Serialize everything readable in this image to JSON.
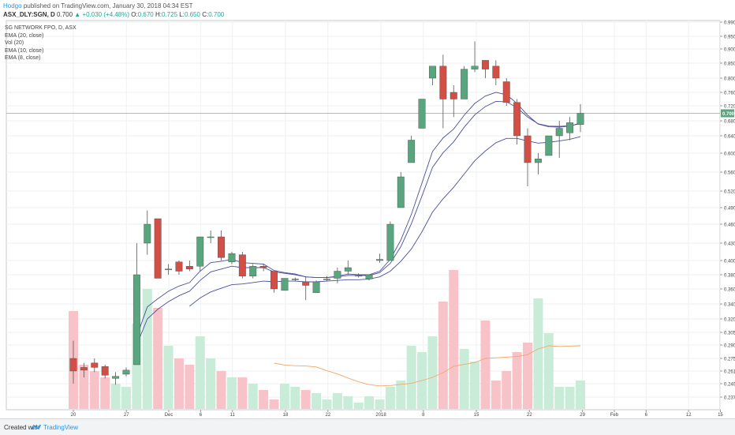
{
  "header": {
    "author": "Hodgo",
    "published": "published on TradingView.com, January 30, 2018 04:34 EST",
    "symbol": "ASX_DLY:SGN, D",
    "last": "0.700",
    "change": "▲ +0.030 (+4.48%)",
    "ohlc": {
      "open": "0.670",
      "high": "0.725",
      "low": "0.650",
      "close": "0.700"
    }
  },
  "legend": [
    "SG NETWORK FPO, D, ASX",
    "EMA (20, close)",
    "Vol (20)",
    "EMA (10, close)",
    "EMA (8, close)"
  ],
  "footer": {
    "created": "Created with",
    "brand": "TradingView",
    "logo": "tradingview-logo-icon"
  },
  "colors": {
    "up": "#58a57e",
    "down": "#d24f45",
    "vol_up": "#c8ecd8",
    "vol_down": "#f7c3c9",
    "ema": "#4c4f9c",
    "vol_ma": "#f0a868",
    "last_line": "#7fb5a0"
  },
  "chart_data": {
    "type": "candlestick",
    "last_price_label": "0.700",
    "y_ticks": [
      "0.990",
      "0.950",
      "0.900",
      "0.850",
      "0.800",
      "0.760",
      "0.720",
      "0.680",
      "0.640",
      "0.600",
      "0.560",
      "0.520",
      "0.490",
      "0.460",
      "0.430",
      "0.400",
      "0.380",
      "0.360",
      "0.340",
      "0.320",
      "0.305",
      "0.290",
      "0.275",
      "0.261",
      "0.249",
      "0.237"
    ],
    "x_ticks": [
      {
        "label": "20",
        "day": 0
      },
      {
        "label": "27",
        "day": 5
      },
      {
        "label": "Dec",
        "day": 9
      },
      {
        "label": "6",
        "day": 12
      },
      {
        "label": "11",
        "day": 15
      },
      {
        "label": "18",
        "day": 20
      },
      {
        "label": "22",
        "day": 24
      },
      {
        "label": "2018",
        "day": 29
      },
      {
        "label": "8",
        "day": 33
      },
      {
        "label": "15",
        "day": 38
      },
      {
        "label": "22",
        "day": 43
      },
      {
        "label": "29",
        "day": 48
      },
      {
        "label": "Feb",
        "day": 51
      },
      {
        "label": "6",
        "day": 54
      },
      {
        "label": "12",
        "day": 58
      },
      {
        "label": "15",
        "day": 61
      }
    ],
    "candles": [
      {
        "o": 0.275,
        "h": 0.295,
        "l": 0.249,
        "c": 0.261,
        "v": 0.31
      },
      {
        "o": 0.265,
        "h": 0.27,
        "l": 0.255,
        "c": 0.262,
        "v": 0.14
      },
      {
        "o": 0.27,
        "h": 0.275,
        "l": 0.26,
        "c": 0.265,
        "v": 0.12
      },
      {
        "o": 0.266,
        "h": 0.268,
        "l": 0.254,
        "c": 0.257,
        "v": 0.1
      },
      {
        "o": 0.254,
        "h": 0.26,
        "l": 0.248,
        "c": 0.256,
        "v": 0.08
      },
      {
        "o": 0.258,
        "h": 0.265,
        "l": 0.256,
        "c": 0.262,
        "v": 0.07
      },
      {
        "o": 0.268,
        "h": 0.43,
        "l": 0.268,
        "c": 0.38,
        "v": 0.27
      },
      {
        "o": 0.43,
        "h": 0.485,
        "l": 0.41,
        "c": 0.46,
        "v": 0.38
      },
      {
        "o": 0.47,
        "h": 0.47,
        "l": 0.375,
        "c": 0.375,
        "v": 0.32
      },
      {
        "o": 0.388,
        "h": 0.395,
        "l": 0.38,
        "c": 0.388,
        "v": 0.2
      },
      {
        "o": 0.398,
        "h": 0.4,
        "l": 0.38,
        "c": 0.385,
        "v": 0.16
      },
      {
        "o": 0.392,
        "h": 0.4,
        "l": 0.385,
        "c": 0.388,
        "v": 0.14
      },
      {
        "o": 0.392,
        "h": 0.44,
        "l": 0.385,
        "c": 0.44,
        "v": 0.23
      },
      {
        "o": 0.44,
        "h": 0.45,
        "l": 0.43,
        "c": 0.44,
        "v": 0.16
      },
      {
        "o": 0.44,
        "h": 0.45,
        "l": 0.4,
        "c": 0.405,
        "v": 0.12
      },
      {
        "o": 0.398,
        "h": 0.415,
        "l": 0.395,
        "c": 0.412,
        "v": 0.1
      },
      {
        "o": 0.41,
        "h": 0.415,
        "l": 0.375,
        "c": 0.378,
        "v": 0.1
      },
      {
        "o": 0.378,
        "h": 0.395,
        "l": 0.375,
        "c": 0.392,
        "v": 0.08
      },
      {
        "o": 0.392,
        "h": 0.395,
        "l": 0.385,
        "c": 0.39,
        "v": 0.06
      },
      {
        "o": 0.385,
        "h": 0.385,
        "l": 0.355,
        "c": 0.36,
        "v": 0.03
      },
      {
        "o": 0.358,
        "h": 0.375,
        "l": 0.358,
        "c": 0.375,
        "v": 0.08
      },
      {
        "o": 0.373,
        "h": 0.376,
        "l": 0.371,
        "c": 0.374,
        "v": 0.07
      },
      {
        "o": 0.37,
        "h": 0.378,
        "l": 0.345,
        "c": 0.365,
        "v": 0.06
      },
      {
        "o": 0.355,
        "h": 0.372,
        "l": 0.355,
        "c": 0.37,
        "v": 0.05
      },
      {
        "o": 0.373,
        "h": 0.378,
        "l": 0.371,
        "c": 0.374,
        "v": 0.03
      },
      {
        "o": 0.375,
        "h": 0.39,
        "l": 0.368,
        "c": 0.385,
        "v": 0.05
      },
      {
        "o": 0.385,
        "h": 0.4,
        "l": 0.38,
        "c": 0.39,
        "v": 0.04
      },
      {
        "o": 0.378,
        "h": 0.382,
        "l": 0.376,
        "c": 0.379,
        "v": 0.02
      },
      {
        "o": 0.374,
        "h": 0.38,
        "l": 0.372,
        "c": 0.38,
        "v": 0.04
      },
      {
        "o": 0.4,
        "h": 0.412,
        "l": 0.397,
        "c": 0.402,
        "v": 0.03
      },
      {
        "o": 0.4,
        "h": 0.465,
        "l": 0.4,
        "c": 0.46,
        "v": 0.07
      },
      {
        "o": 0.49,
        "h": 0.56,
        "l": 0.49,
        "c": 0.55,
        "v": 0.09
      },
      {
        "o": 0.58,
        "h": 0.64,
        "l": 0.58,
        "c": 0.63,
        "v": 0.2
      },
      {
        "o": 0.66,
        "h": 0.74,
        "l": 0.66,
        "c": 0.74,
        "v": 0.18
      },
      {
        "o": 0.8,
        "h": 0.84,
        "l": 0.78,
        "c": 0.84,
        "v": 0.23
      },
      {
        "o": 0.84,
        "h": 0.88,
        "l": 0.66,
        "c": 0.74,
        "v": 0.34
      },
      {
        "o": 0.76,
        "h": 0.78,
        "l": 0.69,
        "c": 0.74,
        "v": 0.44
      },
      {
        "o": 0.74,
        "h": 0.84,
        "l": 0.74,
        "c": 0.83,
        "v": 0.19
      },
      {
        "o": 0.83,
        "h": 0.93,
        "l": 0.82,
        "c": 0.84,
        "v": 0.15
      },
      {
        "o": 0.86,
        "h": 0.86,
        "l": 0.8,
        "c": 0.83,
        "v": 0.28
      },
      {
        "o": 0.84,
        "h": 0.86,
        "l": 0.78,
        "c": 0.8,
        "v": 0.09
      },
      {
        "o": 0.79,
        "h": 0.8,
        "l": 0.72,
        "c": 0.73,
        "v": 0.12
      },
      {
        "o": 0.73,
        "h": 0.74,
        "l": 0.62,
        "c": 0.64,
        "v": 0.18
      },
      {
        "o": 0.64,
        "h": 0.66,
        "l": 0.53,
        "c": 0.58,
        "v": 0.21
      },
      {
        "o": 0.58,
        "h": 0.6,
        "l": 0.555,
        "c": 0.588,
        "v": 0.35
      },
      {
        "o": 0.595,
        "h": 0.64,
        "l": 0.595,
        "c": 0.64,
        "v": 0.24
      },
      {
        "o": 0.64,
        "h": 0.68,
        "l": 0.59,
        "c": 0.66,
        "v": 0.07
      },
      {
        "o": 0.648,
        "h": 0.69,
        "l": 0.63,
        "c": 0.675,
        "v": 0.07
      },
      {
        "o": 0.67,
        "h": 0.725,
        "l": 0.65,
        "c": 0.7,
        "v": 0.09
      }
    ],
    "ema_8": [
      null,
      null,
      null,
      null,
      null,
      null,
      0.3,
      0.336,
      0.347,
      0.357,
      0.364,
      0.369,
      0.385,
      0.397,
      0.399,
      0.402,
      0.397,
      0.396,
      0.395,
      0.386,
      0.383,
      0.381,
      0.377,
      0.376,
      0.376,
      0.378,
      0.381,
      0.38,
      0.38,
      0.385,
      0.402,
      0.435,
      0.478,
      0.537,
      0.604,
      0.635,
      0.658,
      0.695,
      0.727,
      0.749,
      0.76,
      0.753,
      0.727,
      0.695,
      0.671,
      0.664,
      0.663,
      0.666,
      0.674
    ],
    "ema_10": [
      null,
      null,
      null,
      null,
      null,
      null,
      0.29,
      0.32,
      0.333,
      0.343,
      0.351,
      0.357,
      0.372,
      0.384,
      0.388,
      0.392,
      0.39,
      0.39,
      0.39,
      0.384,
      0.382,
      0.38,
      0.377,
      0.376,
      0.376,
      0.377,
      0.379,
      0.379,
      0.379,
      0.383,
      0.396,
      0.424,
      0.461,
      0.511,
      0.57,
      0.601,
      0.626,
      0.663,
      0.696,
      0.718,
      0.733,
      0.732,
      0.715,
      0.69,
      0.672,
      0.666,
      0.665,
      0.667,
      0.672
    ],
    "ema_20": [
      null,
      null,
      null,
      null,
      null,
      null,
      null,
      null,
      null,
      null,
      null,
      0.337,
      0.348,
      0.356,
      0.361,
      0.366,
      0.367,
      0.369,
      0.371,
      0.37,
      0.371,
      0.371,
      0.37,
      0.37,
      0.371,
      0.372,
      0.373,
      0.373,
      0.374,
      0.377,
      0.385,
      0.399,
      0.42,
      0.448,
      0.482,
      0.506,
      0.528,
      0.556,
      0.584,
      0.605,
      0.624,
      0.634,
      0.634,
      0.628,
      0.623,
      0.625,
      0.628,
      0.632,
      0.638
    ],
    "vol_ma_20": [
      null,
      null,
      null,
      null,
      null,
      null,
      null,
      null,
      null,
      null,
      null,
      null,
      null,
      null,
      null,
      null,
      null,
      null,
      null,
      0.145,
      0.139,
      0.137,
      0.136,
      0.133,
      0.121,
      0.111,
      0.098,
      0.086,
      0.077,
      0.073,
      0.074,
      0.078,
      0.081,
      0.09,
      0.1,
      0.115,
      0.135,
      0.141,
      0.147,
      0.16,
      0.162,
      0.164,
      0.166,
      0.172,
      0.19,
      0.2,
      0.198,
      0.199,
      0.2
    ]
  }
}
